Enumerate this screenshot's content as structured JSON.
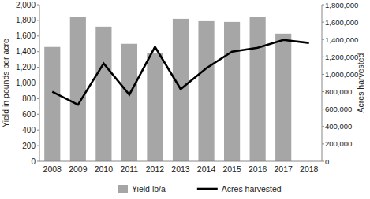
{
  "chart_data": {
    "type": "bar",
    "categories": [
      "2008",
      "2009",
      "2010",
      "2011",
      "2012",
      "2013",
      "2014",
      "2015",
      "2016",
      "2017",
      "2018"
    ],
    "series": [
      {
        "name": "Yield lb/a",
        "type": "bar",
        "color": "#a6a6a6",
        "values": [
          1460,
          1840,
          1720,
          1500,
          1380,
          1820,
          1790,
          1780,
          1840,
          1630,
          null
        ]
      },
      {
        "name": "Acres harvested",
        "type": "line",
        "axis": "y2",
        "color": "#000000",
        "values": [
          800000,
          650000,
          1125000,
          765000,
          1315000,
          830000,
          1070000,
          1260000,
          1305000,
          1395000,
          1360000
        ]
      }
    ],
    "y_label": "Yield in pounds per acre",
    "y2_label": "Acres harvested",
    "ylim": [
      0,
      2000
    ],
    "yticks": [
      0,
      200,
      400,
      600,
      800,
      {
        "value": 1000,
        "label": "1,000"
      },
      {
        "value": 1200,
        "label": "1,200"
      },
      {
        "value": 1400,
        "label": "1,400"
      },
      {
        "value": 1600,
        "label": "1,600"
      },
      {
        "value": 1800,
        "label": "1,800"
      },
      {
        "value": 2000,
        "label": "2,000"
      }
    ],
    "y2lim": [
      0,
      1800000
    ],
    "y2ticks": [
      0,
      {
        "value": 200000,
        "label": "200,000"
      },
      {
        "value": 400000,
        "label": "400,000"
      },
      {
        "value": 600000,
        "label": "600,000"
      },
      {
        "value": 800000,
        "label": "800,000"
      },
      {
        "value": 1000000,
        "label": "1,000,000"
      },
      {
        "value": 1200000,
        "label": "1,200,000"
      },
      {
        "value": 1400000,
        "label": "1,400,000"
      },
      {
        "value": 1600000,
        "label": "1,600,000"
      },
      {
        "value": 1800000,
        "label": "1,800,000"
      }
    ],
    "grid": false,
    "legend": "bottom"
  }
}
